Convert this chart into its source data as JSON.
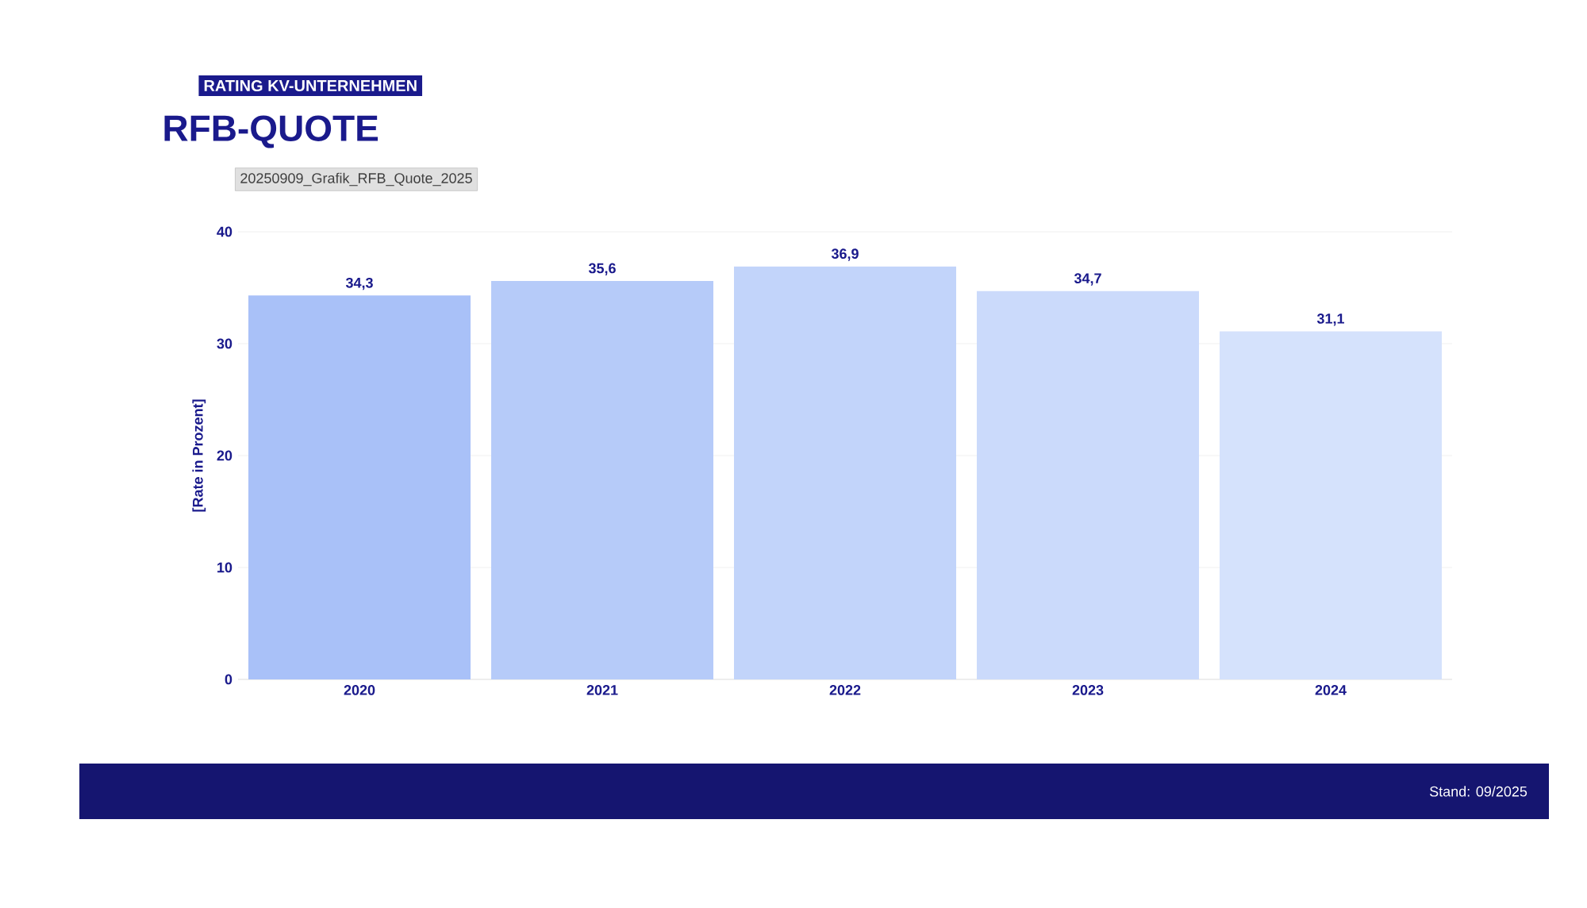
{
  "chart_data": {
    "type": "bar",
    "subtitle": "RATING KV-UNTERNEHMEN",
    "title": "RFB-QUOTE",
    "ylabel": "[Rate in Prozent]",
    "annotations": [
      "20250909_Grafik_RFB_Quote_2025",
      "Stand: 09/2025"
    ],
    "categories": [
      "2020",
      "2021",
      "2022",
      "2023",
      "2024"
    ],
    "values": [
      34.3,
      35.6,
      36.9,
      34.7,
      31.1
    ],
    "value_labels": [
      "34,3",
      "35,6",
      "36,9",
      "34,7",
      "31,1"
    ],
    "colors": [
      "#a9c1f8",
      "#b6cbf9",
      "#c2d4fa",
      "#cbdafb",
      "#d5e2fc"
    ],
    "ylim": [
      0,
      40
    ],
    "yticks": [
      0,
      10,
      20,
      30,
      40
    ],
    "grid": "y"
  }
}
